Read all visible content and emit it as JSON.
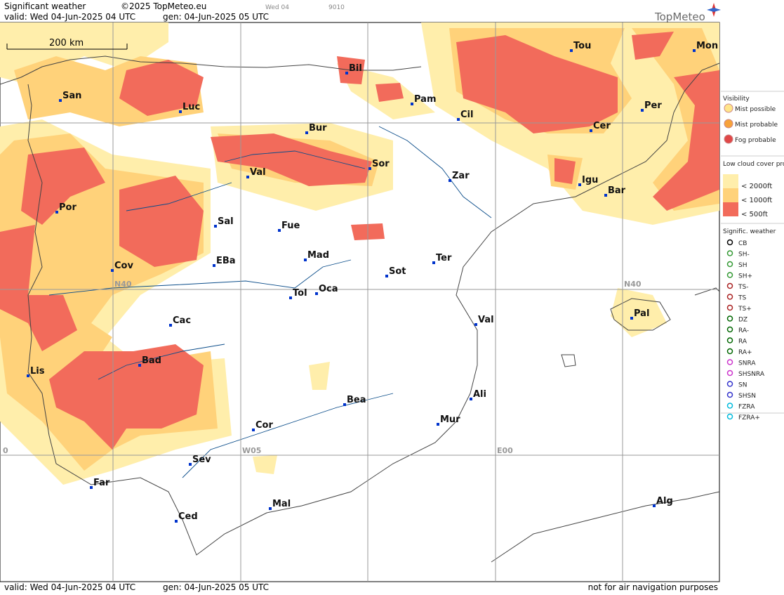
{
  "header": {
    "title": "Significant weather",
    "copyright": "©2025 TopMeteo.eu",
    "day": "Wed 04",
    "code": "9010",
    "valid": "valid:  Wed  04-Jun-2025  04 UTC",
    "generated": "gen: 04-Jun-2025 05 UTC",
    "brand": "TopMeteo"
  },
  "footer": {
    "valid": "valid:  Wed  04-Jun-2025  04 UTC",
    "generated": "gen: 04-Jun-2025 05 UTC",
    "disclaimer": "not for air navigation purposes"
  },
  "map": {
    "scale": "200 km",
    "grid_labels": [
      "N40",
      "N40",
      "W05",
      "E00",
      "0"
    ],
    "cities": [
      "San",
      "Luc",
      "Bil",
      "Pam",
      "Cil",
      "Tou",
      "Mon",
      "Per",
      "Cer",
      "Bur",
      "Sor",
      "Zar",
      "Igu",
      "Bar",
      "Val",
      "Por",
      "Sal",
      "Fue",
      "Mad",
      "EBa",
      "Cov",
      "Ter",
      "Sot",
      "Tol",
      "Oca",
      "Pal",
      "Val",
      "Cac",
      "Bad",
      "Lis",
      "Bea",
      "Ali",
      "Mur",
      "Cor",
      "Sev",
      "Far",
      "Mal",
      "Ced",
      "Alg"
    ]
  },
  "legend": {
    "visibility": {
      "title": "Visibility",
      "items": [
        "Mist possible",
        "Mist probable",
        "Fog probable"
      ]
    },
    "low_cloud": {
      "title": "Low cloud cover probable",
      "items": [
        "< 2000ft",
        "< 1000ft",
        "<  500ft"
      ]
    },
    "weather": {
      "title": "Signific. weather",
      "items": [
        "CB",
        "SH-",
        "SH",
        "SH+",
        "TS-",
        "TS",
        "TS+",
        "DZ",
        "RA-",
        "RA",
        "RA+",
        "SNRA",
        "SHSNRA",
        "SN",
        "SHSN",
        "FZRA",
        "FZRA+"
      ]
    }
  }
}
